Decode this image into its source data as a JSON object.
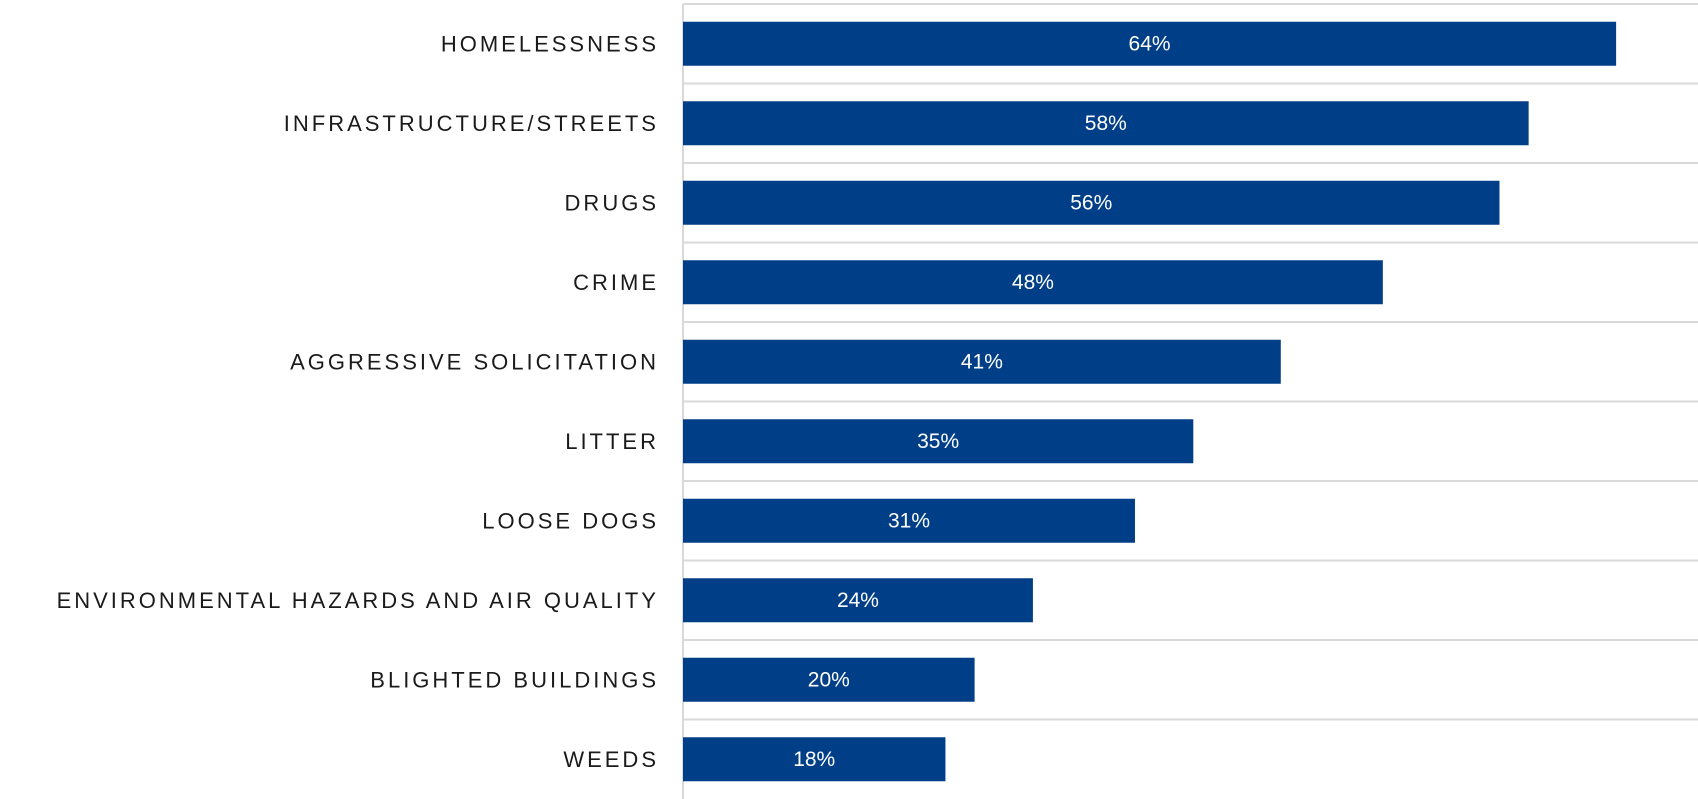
{
  "chart_data": {
    "type": "bar",
    "orientation": "horizontal",
    "categories": [
      "HOMELESSNESS",
      "INFRASTRUCTURE/STREETS",
      "DRUGS",
      "CRIME",
      "AGGRESSIVE SOLICITATION",
      "LITTER",
      "LOOSE DOGS",
      "ENVIRONMENTAL HAZARDS AND AIR QUALITY",
      "BLIGHTED BUILDINGS",
      "WEEDS"
    ],
    "values": [
      64,
      58,
      56,
      48,
      41,
      35,
      31,
      24,
      20,
      18
    ],
    "value_labels": [
      "64%",
      "58%",
      "56%",
      "48%",
      "41%",
      "35%",
      "31%",
      "24%",
      "20%",
      "18%"
    ],
    "unit": "%",
    "xlim": [
      0,
      70
    ],
    "title": "",
    "xlabel": "",
    "ylabel": "",
    "grid": true,
    "bar_color": "#003f87"
  }
}
